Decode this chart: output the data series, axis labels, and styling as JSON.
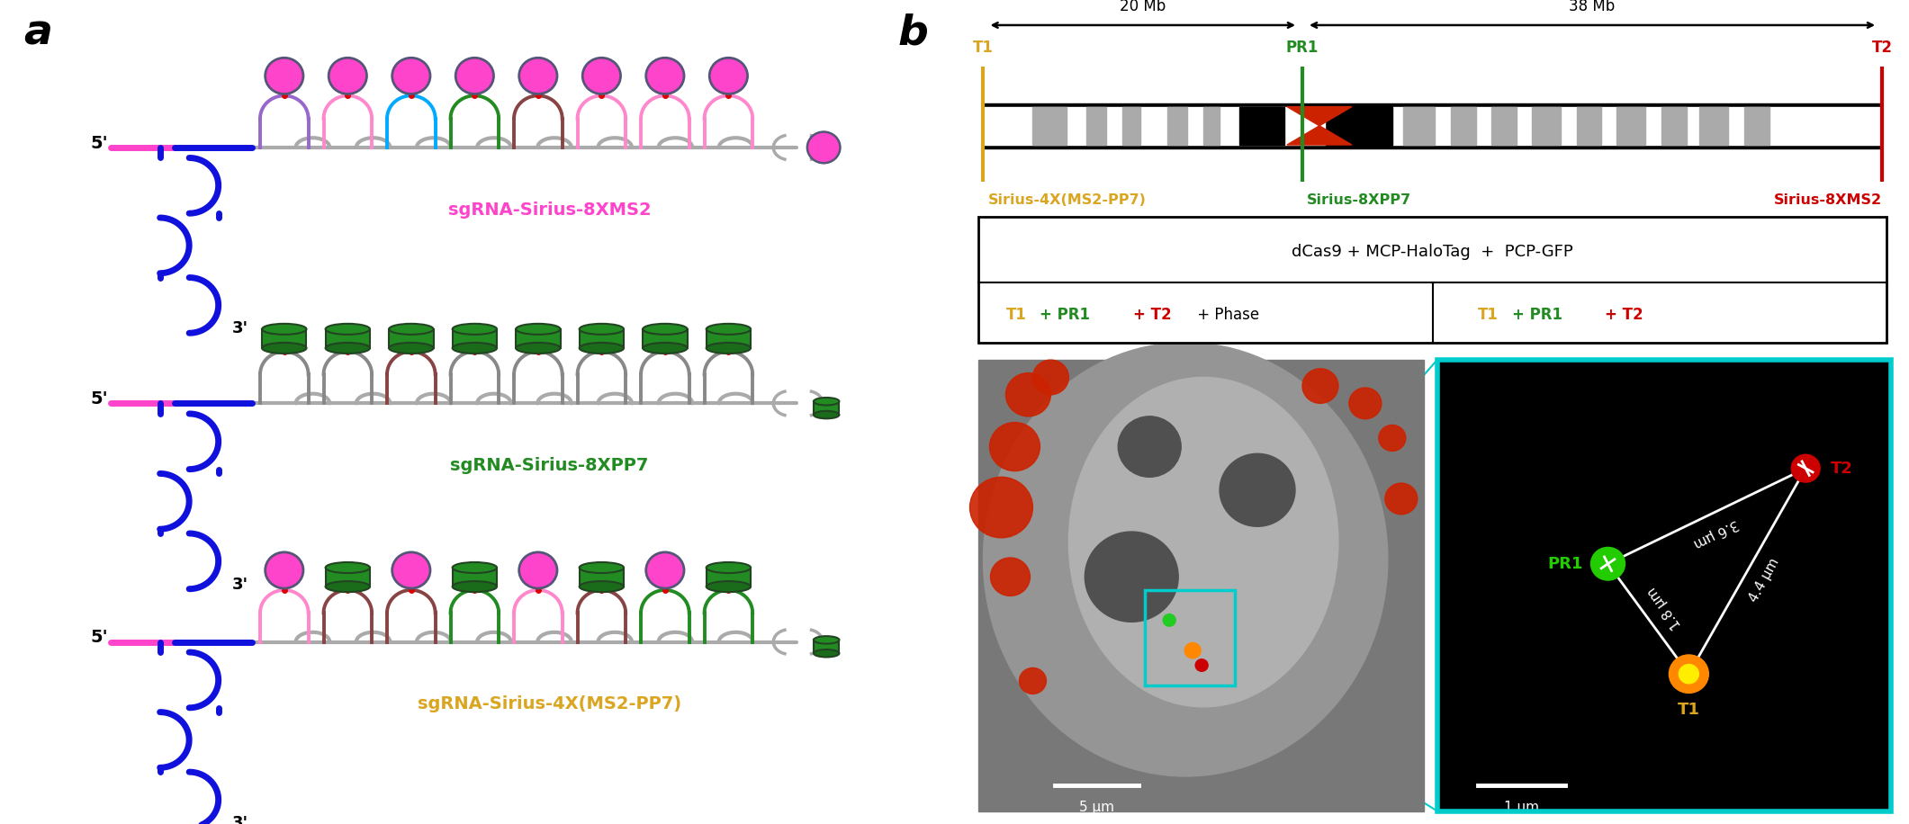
{
  "panel_a_label": "a",
  "panel_b_label": "b",
  "sgRNA_labels": [
    {
      "text": "sgRNA-Sirius-8XMS2",
      "color": "#FF44CC"
    },
    {
      "text": "sgRNA-Sirius-8XPP7",
      "color": "#228B22"
    },
    {
      "text": "sgRNA-Sirius-4X(MS2-PP7)",
      "color": "#DAA520"
    }
  ],
  "chromosome_dist1": "20 Mb",
  "chromosome_dist2": "38 Mb",
  "sirius_labels": [
    {
      "text": "Sirius-4X(MS2-PP7)",
      "color": "#DAA520"
    },
    {
      "text": "Sirius-8XPP7",
      "color": "#228B22"
    },
    {
      "text": "Sirius-8XMS2",
      "color": "#CC0000"
    }
  ],
  "box_title": "dCas9 + MCP-HaloTag  +  PCP-GFP",
  "scale_bar_left": "5 μm",
  "scale_bar_right": "1 μm",
  "measurement_labels": [
    "3.6 μm",
    "4.4 μm",
    "1.8 μm"
  ],
  "ms2_arch_colors_row1": [
    "#9966CC",
    "#FF88CC",
    "#00AAFF",
    "#228B22",
    "#884444",
    "#FF88CC",
    "#FF88CC",
    "#FF88CC"
  ],
  "pp7_arch_colors_row2": [
    "#888888",
    "#888888",
    "#888888",
    "#888888",
    "#888888",
    "#888888",
    "#888888",
    "#888888"
  ],
  "mixed_arch_colors_row3": [
    "#FF88CC",
    "#884444",
    "#228B22",
    "#FF88CC",
    "#FF88CC",
    "#228B22",
    "#FF88CC",
    "#228B22"
  ]
}
